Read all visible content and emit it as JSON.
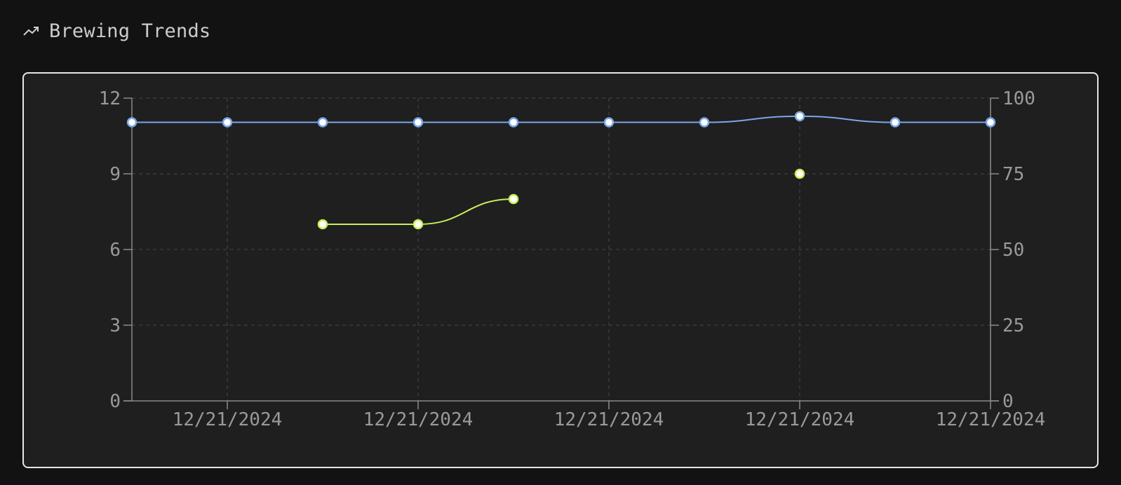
{
  "header": {
    "icon": "trending-up-icon",
    "title": "Brewing Trends"
  },
  "colors": {
    "background": "#121212",
    "card": "#1f1f1f",
    "grid": "#3a3a3a",
    "axis": "#8c8c8c",
    "series_left": "#7aa7e8",
    "series_right": "#c8ee5a"
  },
  "chart_data": {
    "type": "line",
    "title": "Brewing Trends",
    "grid": true,
    "x_points": 10,
    "x_tick_labels": [
      "12/21/2024",
      "12/21/2024",
      "12/21/2024",
      "12/21/2024",
      "12/21/2024"
    ],
    "x_tick_positions": [
      1,
      3,
      5,
      7,
      9
    ],
    "y_left": {
      "ticks": [
        "0",
        "3",
        "6",
        "9",
        "12"
      ],
      "ylim": [
        0,
        12
      ]
    },
    "y_right": {
      "ticks": [
        "0",
        "25",
        "50",
        "75",
        "100"
      ],
      "ylim": [
        0,
        100
      ]
    },
    "series": [
      {
        "axis": "right",
        "color": "#7aa7e8",
        "values": [
          92,
          92,
          92,
          92,
          92,
          92,
          92,
          94,
          92,
          92
        ]
      },
      {
        "axis": "left",
        "color": "#c8ee5a",
        "values": [
          null,
          null,
          7,
          7,
          8,
          null,
          null,
          9,
          null,
          null
        ]
      }
    ]
  }
}
